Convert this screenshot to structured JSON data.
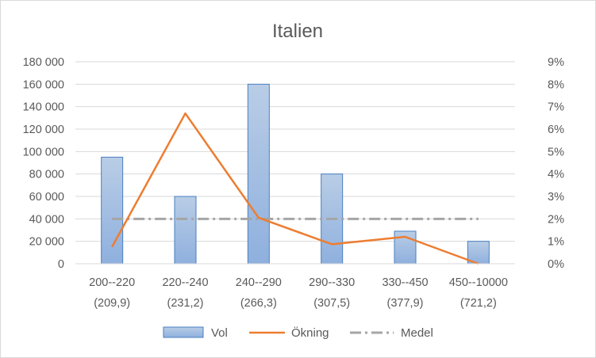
{
  "chart_data": {
    "type": "bar",
    "title": "Italien",
    "categories": [
      "200--220",
      "220--240",
      "240--290",
      "290--330",
      "330--450",
      "450--10000"
    ],
    "category_sublabels": [
      "(209,9)",
      "(231,2)",
      "(266,3)",
      "(307,5)",
      "(377,9)",
      "(721,2)"
    ],
    "left_axis": {
      "ylim": [
        0,
        180000
      ],
      "tick_labels": [
        "0",
        "20 000",
        "40 000",
        "60 000",
        "80 000",
        "100 000",
        "120 000",
        "140 000",
        "160 000",
        "180 000"
      ]
    },
    "right_axis": {
      "ylim": [
        0,
        0.09
      ],
      "tick_labels": [
        "0%",
        "1%",
        "2%",
        "3%",
        "4%",
        "5%",
        "6%",
        "7%",
        "8%",
        "9%"
      ]
    },
    "series": [
      {
        "name": "Vol",
        "type": "bar",
        "axis": "left",
        "values": [
          95000,
          60000,
          160000,
          80000,
          29000,
          20000
        ]
      },
      {
        "name": "Ökning",
        "type": "line",
        "axis": "right",
        "values": [
          0.0075,
          0.067,
          0.0205,
          0.0087,
          0.012,
          0.0
        ]
      },
      {
        "name": "Medel",
        "type": "line",
        "axis": "left",
        "style": "dash-dot",
        "values": [
          40000,
          40000,
          40000,
          40000,
          40000,
          40000
        ]
      }
    ],
    "legend_position": "bottom",
    "grid": "horizontal",
    "colors": {
      "bar_fill_top": "#b9cde6",
      "bar_fill_bottom": "#8fb0de",
      "bar_edge": "#4a7fc0",
      "line": "#ed7d31",
      "mean": "#a5a5a5",
      "grid": "#d9d9d9",
      "text": "#595959"
    }
  }
}
